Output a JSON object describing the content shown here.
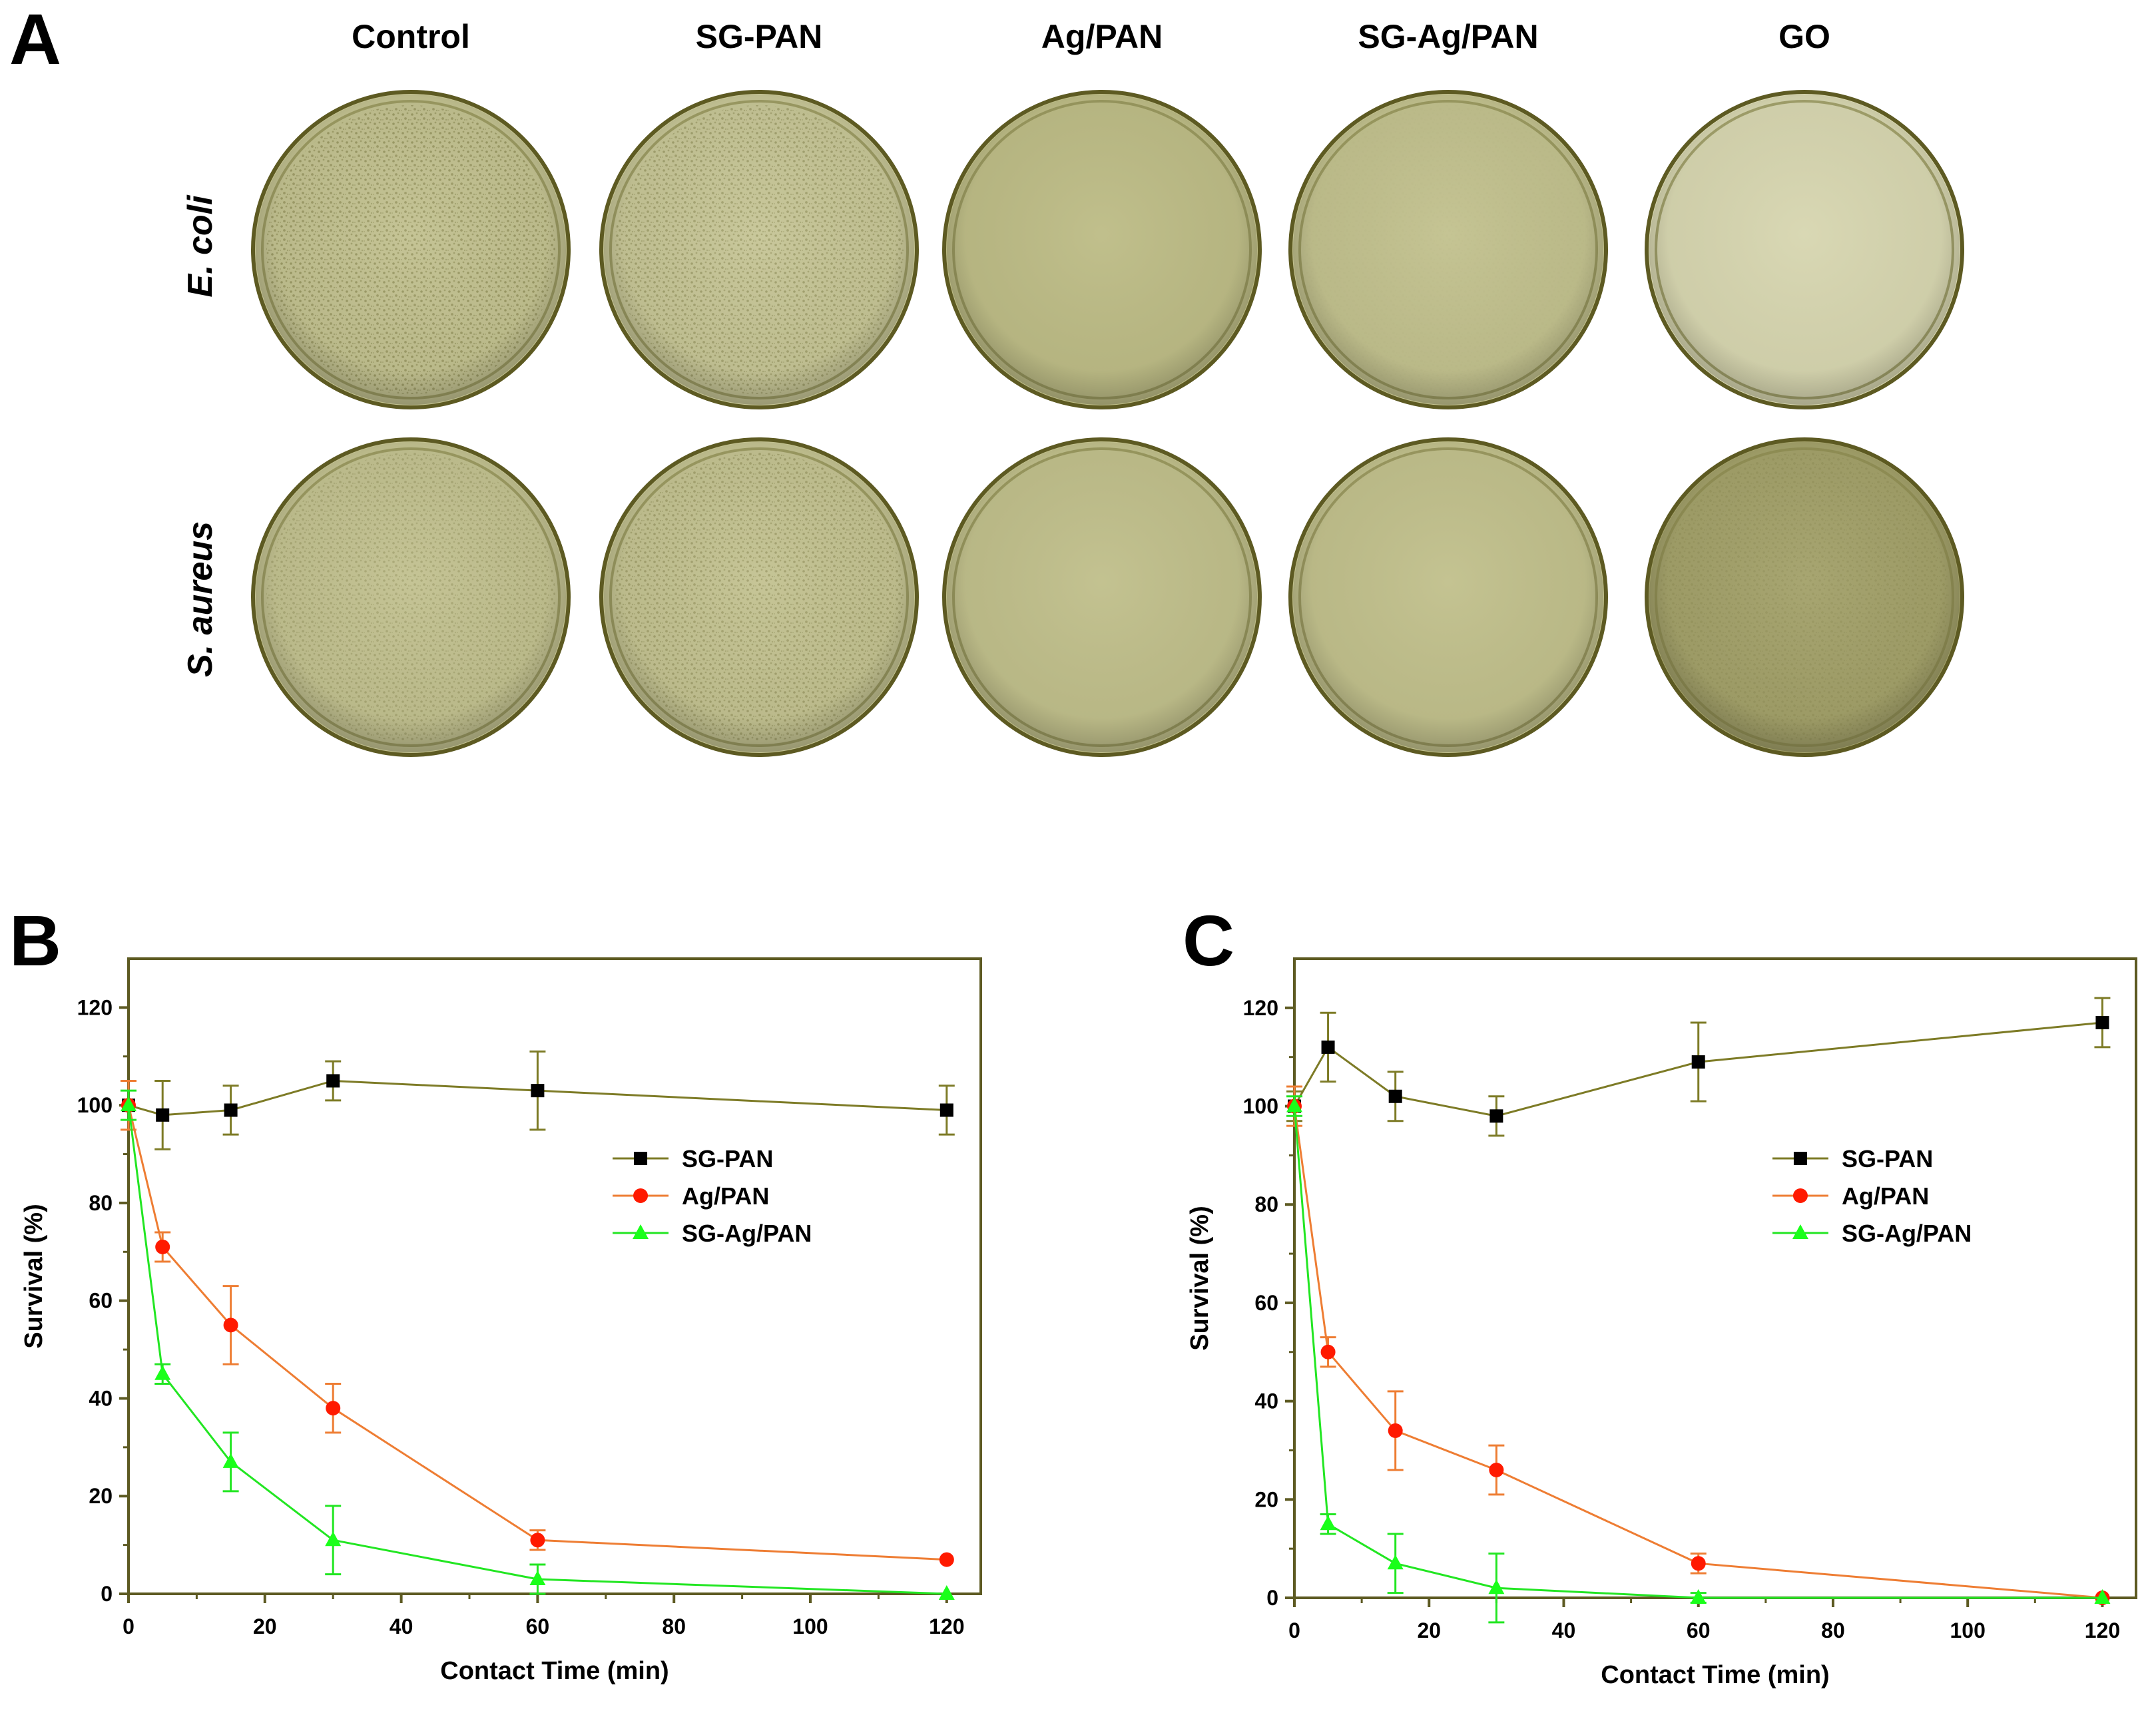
{
  "panel_a": {
    "letter": "A",
    "column_labels": [
      "Control",
      "SG-PAN",
      "Ag/PAN",
      "SG-Ag/PAN",
      "GO"
    ],
    "row_labels": [
      "E. coli",
      "S. aureus"
    ],
    "plates": [
      [
        {
          "colony_density": 0.85,
          "tone": "#c2c190"
        },
        {
          "colony_density": 0.75,
          "tone": "#c6c596"
        },
        {
          "colony_density": 0.0,
          "tone": "#bdbc86"
        },
        {
          "colony_density": 0.05,
          "tone": "#c2c18e"
        },
        {
          "colony_density": 0.0,
          "tone": "#d7d6b0"
        }
      ],
      [
        {
          "colony_density": 0.55,
          "tone": "#c2c190"
        },
        {
          "colony_density": 0.7,
          "tone": "#c3c291"
        },
        {
          "colony_density": 0.0,
          "tone": "#c0bf8b"
        },
        {
          "colony_density": 0.0,
          "tone": "#c1c08c"
        },
        {
          "colony_density": 0.35,
          "tone": "#a3a16a"
        }
      ]
    ],
    "colors": {
      "plate_rim": "#5d5a22",
      "plate_inner_rim": "#8c8a4e"
    }
  },
  "chart_data": [
    {
      "panel": "B",
      "type": "line",
      "xlabel": "Contact Time (min)",
      "ylabel": "Survival (%)",
      "xlim": [
        0,
        125
      ],
      "ylim": [
        0,
        130
      ],
      "xticks": [
        0,
        20,
        40,
        60,
        80,
        100,
        120
      ],
      "yticks": [
        0,
        20,
        40,
        60,
        80,
        100,
        120
      ],
      "x": [
        0,
        5,
        15,
        30,
        60,
        120
      ],
      "legend_position": "upper-right",
      "series": [
        {
          "name": "SG-PAN",
          "marker": "square",
          "color": "#7d7b26",
          "marker_color": "#000000",
          "values": [
            100,
            98,
            99,
            105,
            103,
            99
          ],
          "errors": [
            0,
            7,
            5,
            4,
            8,
            5
          ]
        },
        {
          "name": "Ag/PAN",
          "marker": "circle",
          "color": "#ee7d33",
          "marker_color": "#ff1a00",
          "values": [
            100,
            71,
            55,
            38,
            11,
            7
          ],
          "errors": [
            5,
            3,
            8,
            5,
            2,
            0
          ]
        },
        {
          "name": "SG-Ag/PAN",
          "marker": "triangle",
          "color": "#22e622",
          "marker_color": "#1aff1a",
          "values": [
            100,
            45,
            27,
            11,
            3,
            0
          ],
          "errors": [
            3,
            2,
            6,
            7,
            3,
            0
          ]
        }
      ]
    },
    {
      "panel": "C",
      "type": "line",
      "xlabel": "Contact Time (min)",
      "ylabel": "Survival (%)",
      "xlim": [
        0,
        125
      ],
      "ylim": [
        0,
        130
      ],
      "xticks": [
        0,
        20,
        40,
        60,
        80,
        100,
        120
      ],
      "yticks": [
        0,
        20,
        40,
        60,
        80,
        100,
        120
      ],
      "x": [
        0,
        5,
        15,
        30,
        60,
        120
      ],
      "legend_position": "upper-right",
      "series": [
        {
          "name": "SG-PAN",
          "marker": "square",
          "color": "#7d7b26",
          "marker_color": "#000000",
          "values": [
            100,
            112,
            102,
            98,
            109,
            117
          ],
          "errors": [
            3,
            7,
            5,
            4,
            8,
            5
          ]
        },
        {
          "name": "Ag/PAN",
          "marker": "circle",
          "color": "#ee7d33",
          "marker_color": "#ff1a00",
          "values": [
            100,
            50,
            34,
            26,
            7,
            0
          ],
          "errors": [
            4,
            3,
            8,
            5,
            2,
            0
          ]
        },
        {
          "name": "SG-Ag/PAN",
          "marker": "triangle",
          "color": "#22e622",
          "marker_color": "#1aff1a",
          "values": [
            100,
            15,
            7,
            2,
            0,
            0
          ],
          "errors": [
            2,
            2,
            6,
            7,
            1,
            0
          ]
        }
      ]
    }
  ],
  "axis_color": "#5d5a22"
}
